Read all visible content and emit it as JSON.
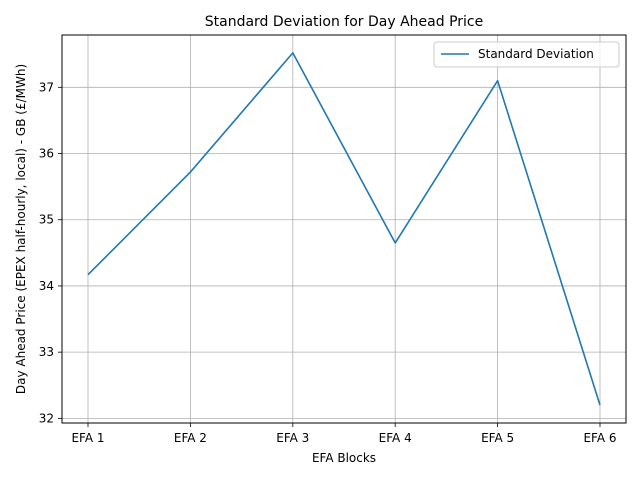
{
  "chart_data": {
    "type": "line",
    "title": "Standard Deviation for Day Ahead Price",
    "xlabel": "EFA Blocks",
    "ylabel": "Day Ahead Price (EPEX half-hourly, local) - GB (£/MWh)",
    "categories": [
      "EFA 1",
      "EFA 2",
      "EFA 3",
      "EFA 4",
      "EFA 5",
      "EFA 6"
    ],
    "series": [
      {
        "name": "Standard Deviation",
        "color": "#1f77b4",
        "values": [
          34.17,
          35.72,
          37.52,
          34.65,
          37.1,
          32.2
        ]
      }
    ],
    "yticks": [
      32,
      33,
      34,
      35,
      36,
      37
    ],
    "ylim": [
      31.93,
      37.79
    ],
    "grid": true,
    "legend_position": "top-right"
  }
}
